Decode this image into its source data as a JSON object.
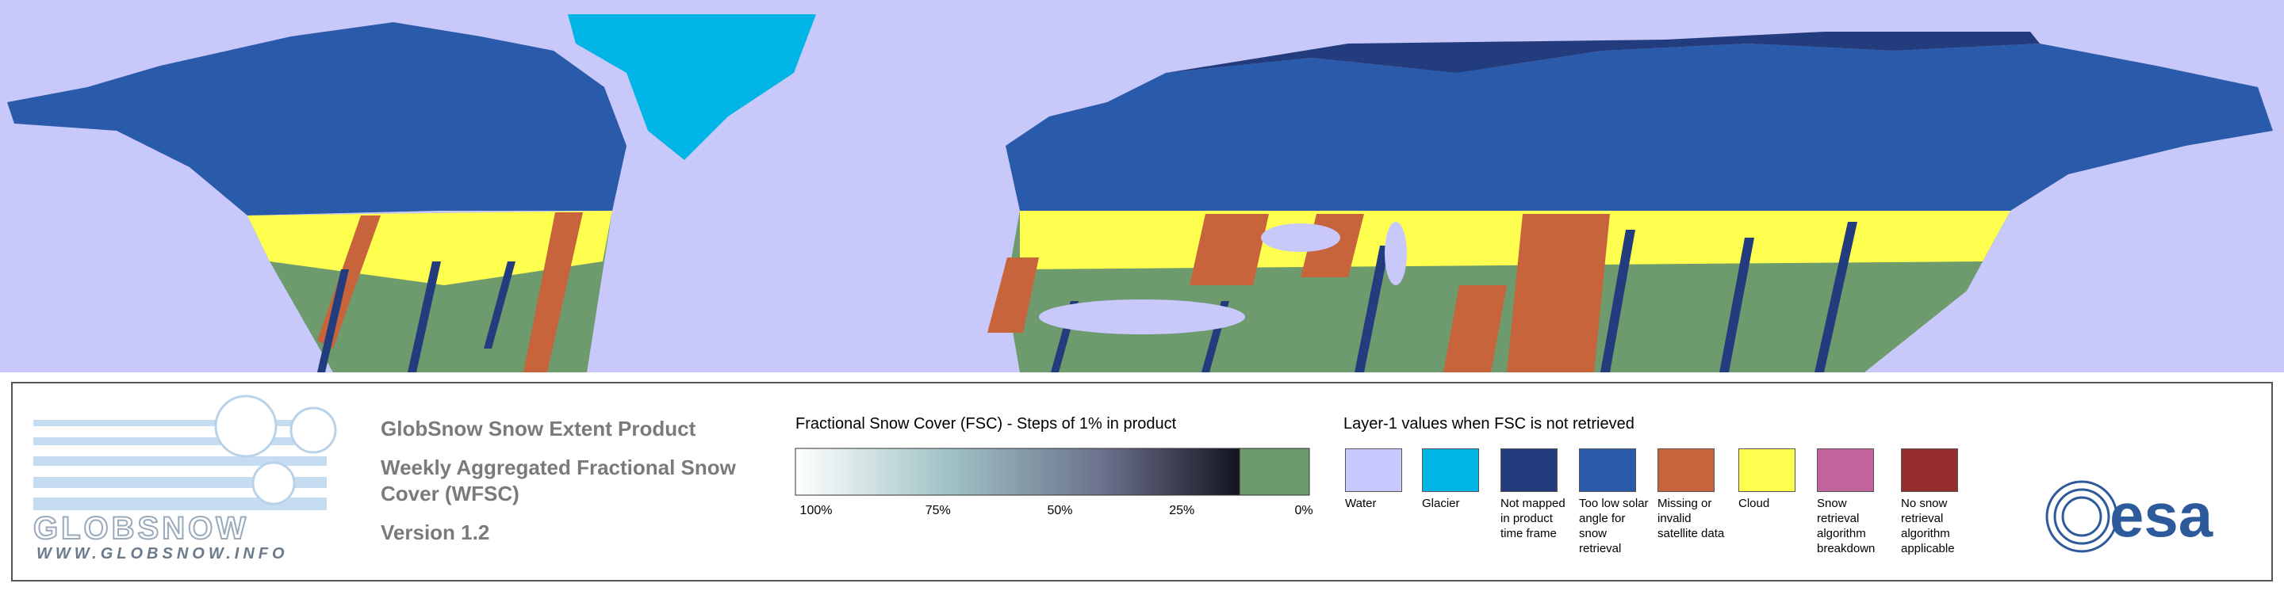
{
  "header": {
    "logo_text": "GLOBSNOW",
    "logo_url": "WWW.GLOBSNOW.INFO"
  },
  "product": {
    "title": "GlobSnow Snow Extent Product",
    "subtitle": "Weekly Aggregated Fractional Snow Cover (WFSC)",
    "version": "Version 1.2"
  },
  "fsc_legend": {
    "title": "Fractional Snow Cover (FSC) - Steps of 1% in product",
    "tick_labels": [
      "100%",
      "75%",
      "50%",
      "25%",
      "0%"
    ]
  },
  "layer1_legend": {
    "title": "Layer-1 values when FSC is not retrieved",
    "classes": [
      {
        "label": "Water",
        "color": "#c8c8ff"
      },
      {
        "label": "Glacier",
        "color": "#00b4e6"
      },
      {
        "label": "Not mapped in product time frame",
        "color": "#233c7d"
      },
      {
        "label": "Too low solar angle for snow retrieval",
        "color": "#2a5aaa"
      },
      {
        "label": "Missing or invalid satellite data",
        "color": "#c8643c"
      },
      {
        "label": "Cloud",
        "color": "#ffff50"
      },
      {
        "label": "Snow retrieval algorithm breakdown",
        "color": "#c0649b"
      },
      {
        "label": "No snow retrieval algorithm applicable",
        "color": "#962d2d"
      }
    ]
  },
  "agency": "esa"
}
